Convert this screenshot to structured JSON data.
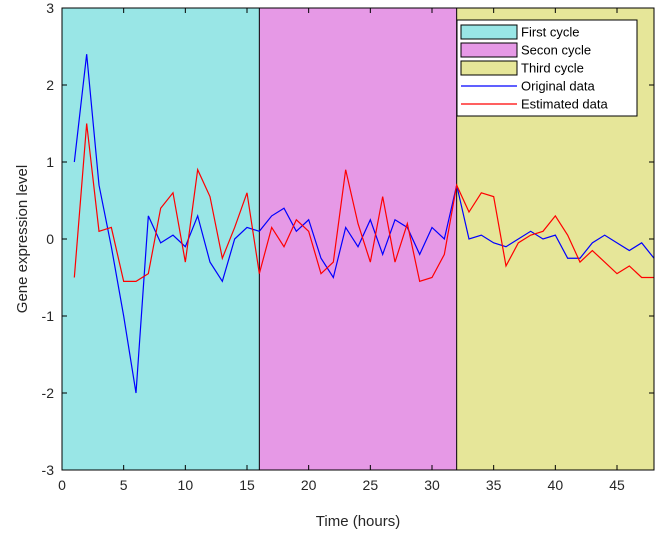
{
  "chart_data": {
    "type": "line",
    "xlabel": "Time (hours)",
    "ylabel": "Gene expression level",
    "xlim": [
      0,
      48
    ],
    "ylim": [
      -3,
      3
    ],
    "xticks": [
      0,
      5,
      10,
      15,
      20,
      25,
      30,
      35,
      40,
      45
    ],
    "yticks": [
      -3,
      -2,
      -1,
      0,
      1,
      2,
      3
    ],
    "grid": false,
    "legend_position": "top-right",
    "regions": [
      {
        "name": "First cycle",
        "x_start": 0,
        "x_end": 16,
        "color": "#99E6E6"
      },
      {
        "name": "Secon cycle",
        "x_start": 16,
        "x_end": 32,
        "color": "#E699E6"
      },
      {
        "name": "Third cycle",
        "x_start": 32,
        "x_end": 48,
        "color": "#E6E699"
      }
    ],
    "x": [
      1,
      2,
      3,
      4,
      5,
      6,
      7,
      8,
      9,
      10,
      11,
      12,
      13,
      14,
      15,
      16,
      17,
      18,
      19,
      20,
      21,
      22,
      23,
      24,
      25,
      26,
      27,
      28,
      29,
      30,
      31,
      32,
      33,
      34,
      35,
      36,
      37,
      38,
      39,
      40,
      41,
      42,
      43,
      44,
      45,
      46,
      47,
      48
    ],
    "series": [
      {
        "name": "Original data",
        "color": "#0000FF",
        "values": [
          1.0,
          2.4,
          0.7,
          -0.1,
          -1.0,
          -2.0,
          0.3,
          -0.05,
          0.05,
          -0.1,
          0.3,
          -0.3,
          -0.55,
          0.0,
          0.15,
          0.1,
          0.3,
          0.4,
          0.1,
          0.25,
          -0.25,
          -0.5,
          0.15,
          -0.1,
          0.25,
          -0.2,
          0.25,
          0.15,
          -0.2,
          0.15,
          0.0,
          0.7,
          0.0,
          0.05,
          -0.05,
          -0.1,
          0.0,
          0.1,
          0.0,
          0.05,
          -0.25,
          -0.25,
          -0.05,
          0.05,
          -0.05,
          -0.15,
          -0.05,
          -0.25
        ]
      },
      {
        "name": "Estimated data",
        "color": "#FF0000",
        "values": [
          -0.5,
          1.5,
          0.1,
          0.15,
          -0.55,
          -0.55,
          -0.45,
          0.4,
          0.6,
          -0.3,
          0.9,
          0.55,
          -0.25,
          0.15,
          0.6,
          -0.45,
          0.15,
          -0.1,
          0.25,
          0.1,
          -0.45,
          -0.3,
          0.9,
          0.2,
          -0.3,
          0.55,
          -0.3,
          0.2,
          -0.55,
          -0.5,
          -0.2,
          0.7,
          0.35,
          0.6,
          0.55,
          -0.35,
          -0.05,
          0.05,
          0.1,
          0.3,
          0.05,
          -0.3,
          -0.15,
          -0.3,
          -0.45,
          -0.35,
          -0.5,
          -0.5
        ]
      }
    ]
  }
}
